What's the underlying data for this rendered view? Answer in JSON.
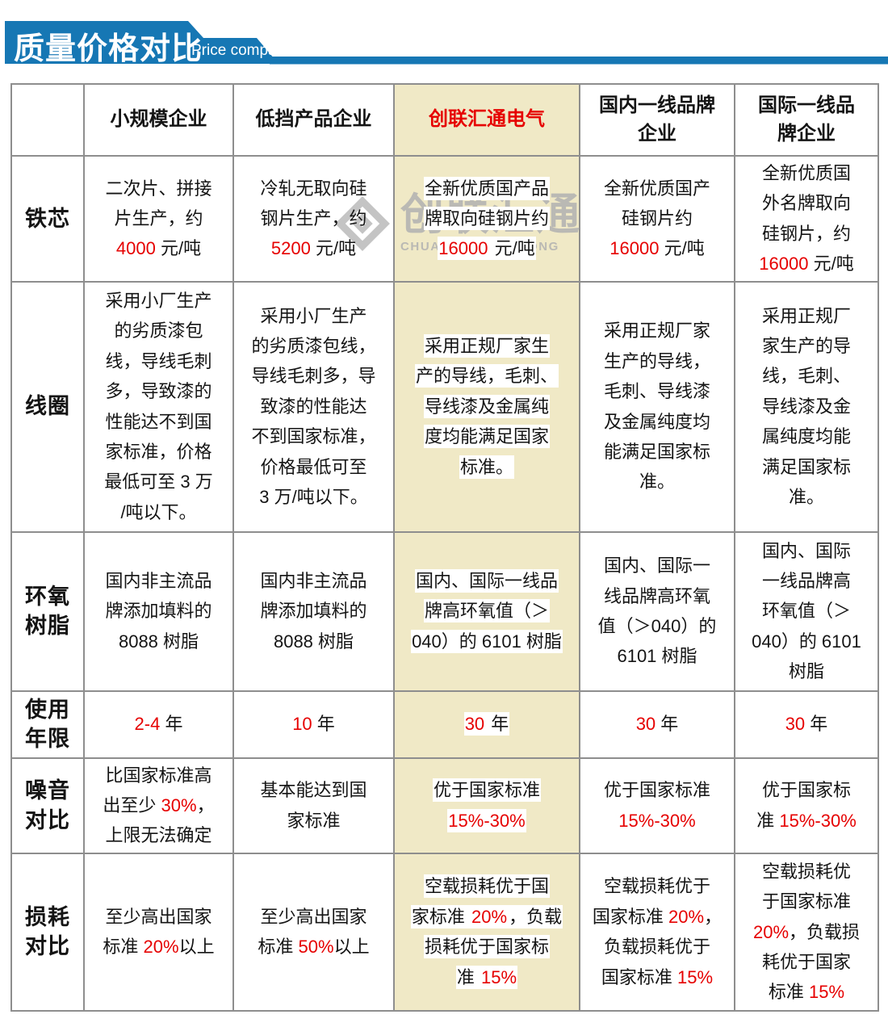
{
  "banner": {
    "title": "质量价格对比",
    "subtitle": "Price comparison",
    "color": "#1677b4"
  },
  "watermark": {
    "cn": "创联汇通",
    "en": "CHUANGLIANHUITONG"
  },
  "colors": {
    "accent_red": "#e60000",
    "highlight_column_bg": "#f0e9c6",
    "table_border": "#8e8e8e",
    "banner_blue": "#1677b4",
    "watermark_gray": "#b0b0b0"
  },
  "table": {
    "highlight_col": 3,
    "header": [
      "",
      "小规模企业",
      "低挡产品企业",
      "创联汇通电气",
      "国内一线品牌\n企业",
      "国际一线品\n牌企业"
    ],
    "rows": [
      {
        "label": "铁芯",
        "cells": [
          [
            {
              "t": "二次片、拼接\n片生产，约\n"
            },
            {
              "t": "4000",
              "red": true
            },
            {
              "t": " 元/吨"
            }
          ],
          [
            {
              "t": "冷轧无取向硅\n钢片生产，约\n"
            },
            {
              "t": "5200",
              "red": true
            },
            {
              "t": " 元/吨"
            }
          ],
          [
            {
              "t": "全新优质国产品\n牌取向硅钢片约\n"
            },
            {
              "t": "16000",
              "red": true
            },
            {
              "t": " 元/吨"
            }
          ],
          [
            {
              "t": "全新优质国产\n硅钢片约\n"
            },
            {
              "t": "16000",
              "red": true
            },
            {
              "t": " 元/吨"
            }
          ],
          [
            {
              "t": "全新优质国\n外名牌取向\n硅钢片，约\n"
            },
            {
              "t": "16000",
              "red": true
            },
            {
              "t": " 元/吨"
            }
          ]
        ]
      },
      {
        "label": "线圈",
        "cells": [
          [
            {
              "t": "采用小厂生产\n的劣质漆包\n线，导线毛刺\n多，导致漆的\n性能达不到国\n家标准，价格\n最低可至 3 万\n/吨以下。"
            }
          ],
          [
            {
              "t": "采用小厂生产\n的劣质漆包线，\n导线毛刺多，导\n致漆的性能达\n不到国家标准，\n价格最低可至\n3 万/吨以下。"
            }
          ],
          [
            {
              "t": "采用正规厂家生\n产的导线，毛刺、\n导线漆及金属纯\n度均能满足国家\n标准。"
            }
          ],
          [
            {
              "t": "采用正规厂家\n生产的导线，\n毛刺、导线漆\n及金属纯度均\n能满足国家标\n准。"
            }
          ],
          [
            {
              "t": "采用正规厂\n家生产的导\n线，毛刺、\n导线漆及金\n属纯度均能\n满足国家标\n准。"
            }
          ]
        ]
      },
      {
        "label": "环氧\n树脂",
        "cells": [
          [
            {
              "t": "国内非主流品\n牌添加填料的\n8088 树脂"
            }
          ],
          [
            {
              "t": "国内非主流品\n牌添加填料的\n8088 树脂"
            }
          ],
          [
            {
              "t": "国内、国际一线品\n牌高环氧值（＞\n040）的 6101 树脂"
            }
          ],
          [
            {
              "t": "国内、国际一\n线品牌高环氧\n值（＞040）的\n6101 树脂"
            }
          ],
          [
            {
              "t": "国内、国际\n一线品牌高\n环氧值（＞\n040）的 6101\n树脂"
            }
          ]
        ]
      },
      {
        "label": "使用\n年限",
        "cells": [
          [
            {
              "t": "2-4",
              "red": true
            },
            {
              "t": " 年"
            }
          ],
          [
            {
              "t": "10",
              "red": true
            },
            {
              "t": " 年"
            }
          ],
          [
            {
              "t": "30",
              "red": true
            },
            {
              "t": " 年"
            }
          ],
          [
            {
              "t": "30",
              "red": true
            },
            {
              "t": " 年"
            }
          ],
          [
            {
              "t": "30",
              "red": true
            },
            {
              "t": " 年"
            }
          ]
        ]
      },
      {
        "label": "噪音\n对比",
        "cells": [
          [
            {
              "t": "比国家标准高\n出至少 "
            },
            {
              "t": "30%",
              "red": true
            },
            {
              "t": "，\n上限无法确定"
            }
          ],
          [
            {
              "t": "基本能达到国\n家标准"
            }
          ],
          [
            {
              "t": "优于国家标准\n"
            },
            {
              "t": "15%-30%",
              "red": true
            }
          ],
          [
            {
              "t": "优于国家标准\n"
            },
            {
              "t": "15%-30%",
              "red": true
            }
          ],
          [
            {
              "t": "优于国家标\n准 "
            },
            {
              "t": "15%-30%",
              "red": true
            }
          ]
        ]
      },
      {
        "label": "损耗\n对比",
        "cells": [
          [
            {
              "t": "至少高出国家\n标准 "
            },
            {
              "t": "20%",
              "red": true
            },
            {
              "t": "以上"
            }
          ],
          [
            {
              "t": "至少高出国家\n标准 "
            },
            {
              "t": "50%",
              "red": true
            },
            {
              "t": "以上"
            }
          ],
          [
            {
              "t": "空载损耗优于国\n家标准 "
            },
            {
              "t": "20%",
              "red": true
            },
            {
              "t": "，负载\n损耗优于国家标\n准 "
            },
            {
              "t": "15%",
              "red": true
            }
          ],
          [
            {
              "t": "空载损耗优于\n国家标准 "
            },
            {
              "t": "20%",
              "red": true
            },
            {
              "t": "，\n负载损耗优于\n国家标准 "
            },
            {
              "t": "15%",
              "red": true
            }
          ],
          [
            {
              "t": "空载损耗优\n于国家标准\n"
            },
            {
              "t": "20%",
              "red": true
            },
            {
              "t": "，负载损\n耗优于国家\n标准 "
            },
            {
              "t": "15%",
              "red": true
            }
          ]
        ]
      }
    ]
  }
}
